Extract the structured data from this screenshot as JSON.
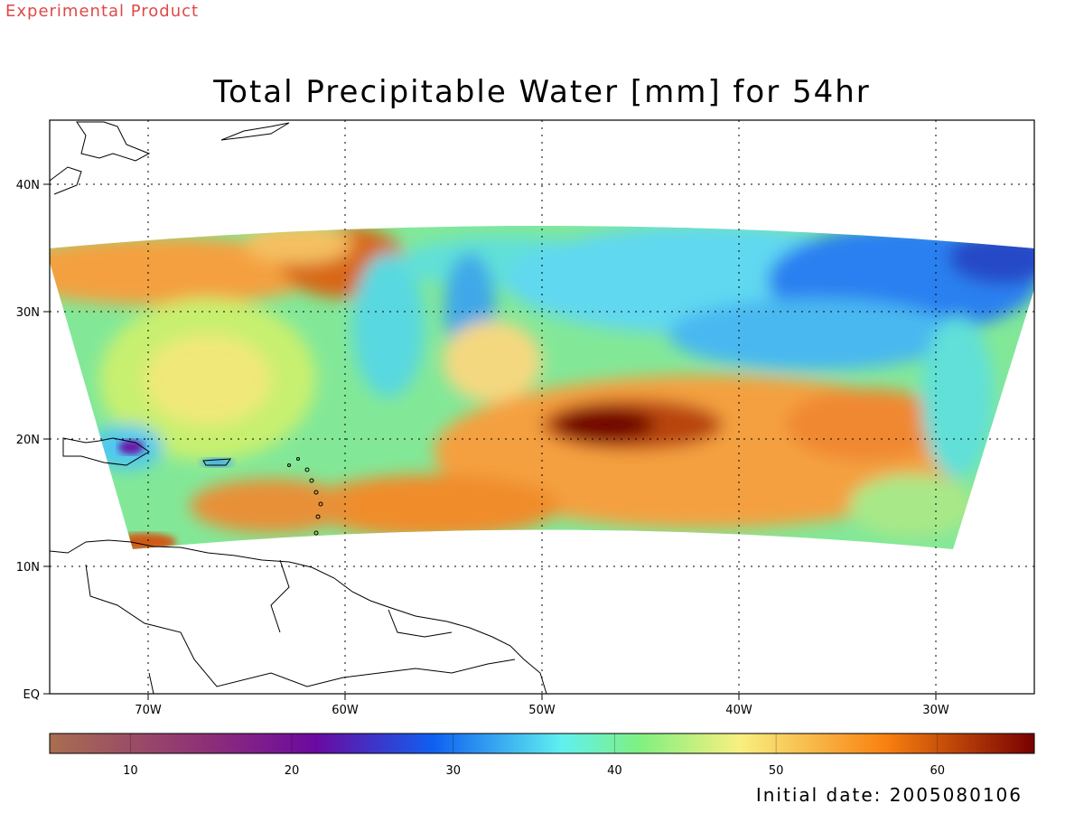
{
  "header": {
    "badge": "Experimental Product",
    "title": "Total Precipitable Water [mm] for 54hr",
    "initial_date": "Initial date: 2005080106"
  },
  "map": {
    "lat_labels": [
      "EQ",
      "10N",
      "20N",
      "30N",
      "40N"
    ],
    "lon_labels": [
      "70W",
      "60W",
      "50W",
      "40W",
      "30W"
    ],
    "lon_range": [
      "75W",
      "25W"
    ],
    "lat_range": [
      "0",
      "45N"
    ],
    "grid": "dotted"
  },
  "colorbar": {
    "ticks": [
      "10",
      "20",
      "30",
      "40",
      "50",
      "60"
    ],
    "range": [
      5,
      66
    ],
    "units": "mm",
    "colors": [
      "#a86e50",
      "#8e2f78",
      "#6a0aa0",
      "#1060f0",
      "#60f0f0",
      "#80f080",
      "#f8f080",
      "#f88010",
      "#780000"
    ]
  }
}
